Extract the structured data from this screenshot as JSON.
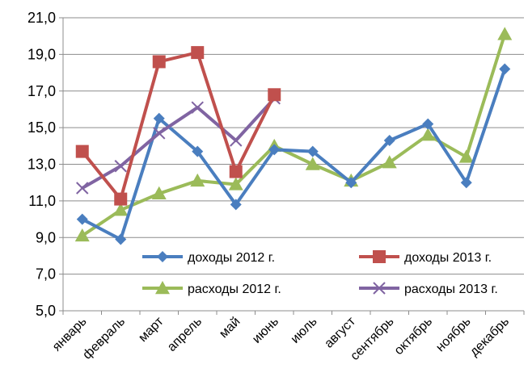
{
  "chart_data": {
    "type": "line",
    "title": "",
    "xlabel": "",
    "ylabel": "",
    "ylim": [
      5.0,
      21.0
    ],
    "y_ticks": [
      "5,0",
      "7,0",
      "9,0",
      "11,0",
      "13,0",
      "15,0",
      "17,0",
      "19,0",
      "21,0"
    ],
    "y_tick_values": [
      5,
      7,
      9,
      11,
      13,
      15,
      17,
      19,
      21
    ],
    "grid": "horizontal",
    "legend_position": "bottom-inside",
    "categories": [
      "январь",
      "февраль",
      "март",
      "апрель",
      "май",
      "июнь",
      "июль",
      "август",
      "сентябрь",
      "октябрь",
      "ноябрь",
      "декабрь"
    ],
    "series": [
      {
        "name": "доходы 2012 г.",
        "color": "#4a7ebf",
        "marker": "diamond",
        "values": [
          10.0,
          8.9,
          15.5,
          13.7,
          10.8,
          13.8,
          13.7,
          12.0,
          14.3,
          15.2,
          12.0,
          18.2
        ]
      },
      {
        "name": "доходы 2013 г.",
        "color": "#c0504d",
        "marker": "square",
        "values": [
          13.7,
          11.1,
          18.6,
          19.1,
          12.6,
          16.8,
          null,
          null,
          null,
          null,
          null,
          null
        ]
      },
      {
        "name": "расходы 2012 г.",
        "color": "#9bbb59",
        "marker": "triangle",
        "values": [
          9.1,
          10.5,
          11.4,
          12.1,
          11.9,
          14.0,
          13.0,
          12.1,
          13.1,
          14.6,
          13.4,
          20.1
        ]
      },
      {
        "name": "расходы 2013 г.",
        "color": "#8064a2",
        "marker": "cross",
        "values": [
          11.7,
          12.9,
          14.7,
          16.1,
          14.3,
          16.6,
          null,
          null,
          null,
          null,
          null,
          null
        ]
      }
    ]
  }
}
